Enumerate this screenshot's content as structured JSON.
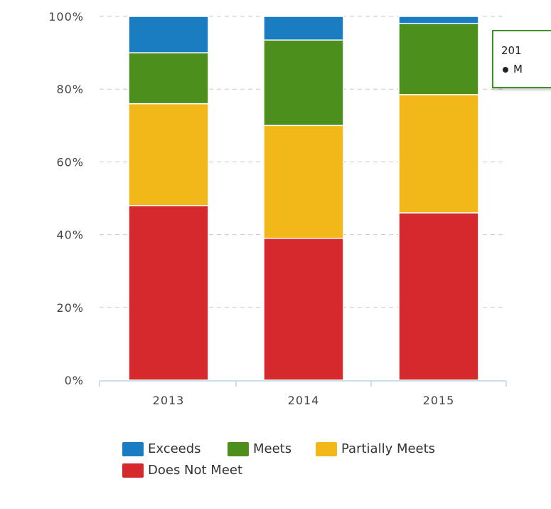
{
  "chart_data": {
    "type": "bar",
    "stacked": true,
    "categories": [
      "2013",
      "2014",
      "2015"
    ],
    "series": [
      {
        "name": "Does Not Meet",
        "values": [
          48,
          39,
          46
        ],
        "color": "#d42a2e"
      },
      {
        "name": "Partially Meets",
        "values": [
          28,
          31,
          32.5
        ],
        "color": "#f2b81a"
      },
      {
        "name": "Meets",
        "values": [
          14,
          23.5,
          19.5
        ],
        "color": "#4d8f1c"
      },
      {
        "name": "Exceeds",
        "values": [
          10,
          6.5,
          2
        ],
        "color": "#1b7dc1"
      }
    ],
    "y_ticks": [
      "0%",
      "20%",
      "40%",
      "60%",
      "80%",
      "100%"
    ],
    "ylim": [
      0,
      100
    ],
    "grid": "dashed horizontal",
    "legend_position": "bottom"
  },
  "legend": [
    {
      "label": "Exceeds",
      "color": "#1b7dc1"
    },
    {
      "label": "Meets",
      "color": "#4d8f1c"
    },
    {
      "label": "Partially Meets",
      "color": "#f2b81a"
    },
    {
      "label": "Does Not Meet",
      "color": "#d42a2e"
    }
  ],
  "tooltip": {
    "title": "201",
    "line": "M"
  }
}
